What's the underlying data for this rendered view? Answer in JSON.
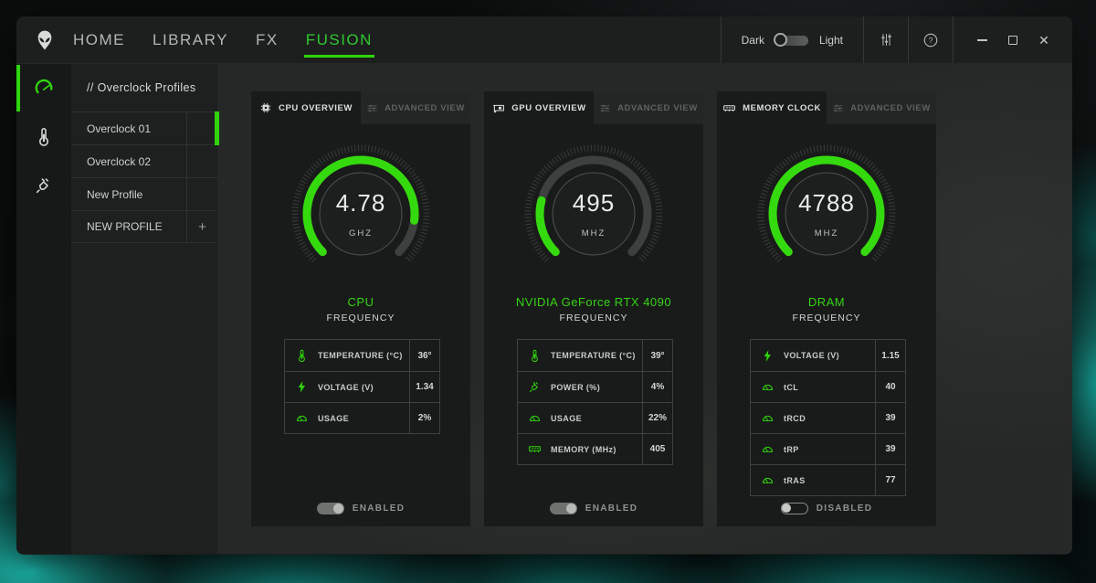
{
  "accent": "#2fd40c",
  "accent_text": "#2fc92f",
  "titlebar": {
    "nav": [
      {
        "label": "HOME",
        "active": false
      },
      {
        "label": "LIBRARY",
        "active": false
      },
      {
        "label": "FX",
        "active": false
      },
      {
        "label": "FUSION",
        "active": true
      }
    ],
    "theme": {
      "dark_label": "Dark",
      "light_label": "Light",
      "selected": "Dark"
    }
  },
  "sidebar": {
    "header": "// Overclock Profiles",
    "profiles": [
      {
        "label": "Overclock 01",
        "selected": true
      },
      {
        "label": "Overclock 02",
        "selected": false
      },
      {
        "label": "New Profile",
        "selected": false
      }
    ],
    "new_profile": {
      "label": "NEW PROFILE",
      "action": "+"
    }
  },
  "cards": [
    {
      "tab_active": "CPU OVERVIEW",
      "tab_inactive": "ADVANCED VIEW",
      "gauge": {
        "value": "4.78",
        "unit": "GHZ",
        "fill": 0.86,
        "name": "CPU",
        "sub": "FREQUENCY"
      },
      "rows": [
        {
          "icon": "thermometer-icon",
          "label": "TEMPERATURE (°C)",
          "value": "36°"
        },
        {
          "icon": "bolt-icon",
          "label": "VOLTAGE (V)",
          "value": "1.34"
        },
        {
          "icon": "meter-icon",
          "label": "USAGE",
          "value": "2%"
        }
      ],
      "toggle": {
        "on": true,
        "label": "ENABLED"
      }
    },
    {
      "tab_active": "GPU OVERVIEW",
      "tab_inactive": "ADVANCED VIEW",
      "gauge": {
        "value": "495",
        "unit": "MHZ",
        "fill": 0.22,
        "name": "NVIDIA GeForce RTX 4090",
        "sub": "FREQUENCY"
      },
      "rows": [
        {
          "icon": "thermometer-icon",
          "label": "TEMPERATURE (°C)",
          "value": "39°"
        },
        {
          "icon": "plug-icon",
          "label": "POWER (%)",
          "value": "4%"
        },
        {
          "icon": "meter-icon",
          "label": "USAGE",
          "value": "22%"
        },
        {
          "icon": "ram-icon",
          "label": "MEMORY (MHz)",
          "value": "405"
        }
      ],
      "toggle": {
        "on": true,
        "label": "ENABLED"
      }
    },
    {
      "tab_active": "MEMORY CLOCK",
      "tab_inactive": "ADVANCED VIEW",
      "gauge": {
        "value": "4788",
        "unit": "MHZ",
        "fill": 1.0,
        "name": "DRAM",
        "sub": "FREQUENCY"
      },
      "rows": [
        {
          "icon": "bolt-icon",
          "label": "VOLTAGE (V)",
          "value": "1.15"
        },
        {
          "icon": "meter-icon",
          "label": "tCL",
          "value": "40"
        },
        {
          "icon": "meter-icon",
          "label": "tRCD",
          "value": "39"
        },
        {
          "icon": "meter-icon",
          "label": "tRP",
          "value": "39"
        },
        {
          "icon": "meter-icon",
          "label": "tRAS",
          "value": "77"
        }
      ],
      "toggle": {
        "on": false,
        "label": "DISABLED"
      }
    }
  ]
}
